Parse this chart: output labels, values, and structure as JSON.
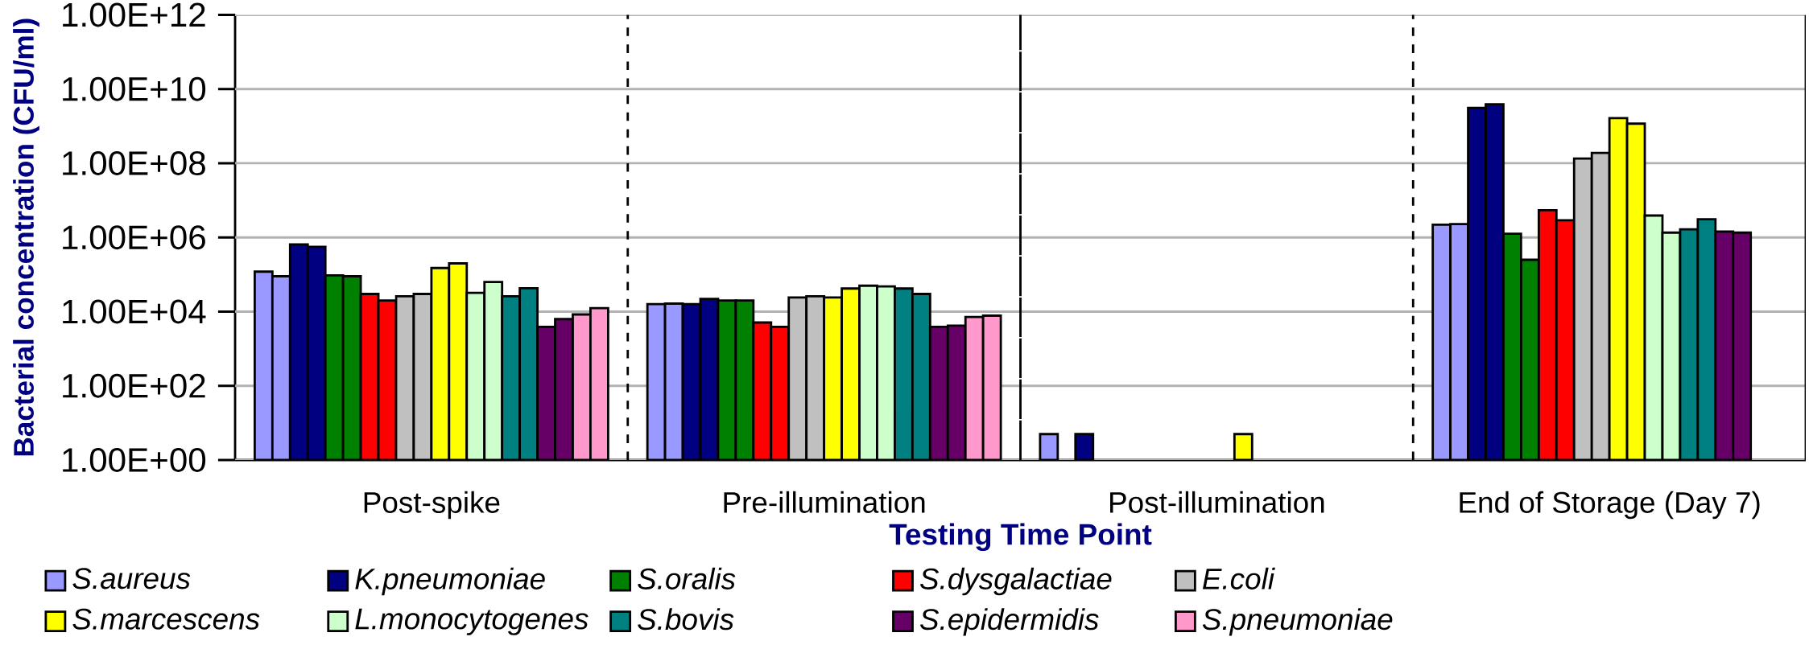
{
  "chart_data": {
    "type": "bar",
    "xlabel": "Testing Time Point",
    "ylabel": "Bacterial concentration (CFU/ml)",
    "categories": [
      "Post-spike",
      "Pre-illumination",
      "Post-illumination",
      "End of Storage (Day 7)"
    ],
    "log": true,
    "grid": "y",
    "legend": "bottom",
    "ylim": [
      1,
      1000000000000.0
    ],
    "yticks": [
      {
        "value": 1,
        "label": "1.00E+00"
      },
      {
        "value": 100,
        "label": "1.00E+02"
      },
      {
        "value": 10000,
        "label": "1.00E+04"
      },
      {
        "value": 1000000,
        "label": "1.00E+06"
      },
      {
        "value": 100000000,
        "label": "1.00E+08"
      },
      {
        "value": 10000000000,
        "label": "1.00E+10"
      },
      {
        "value": 1000000000000,
        "label": "1.00E+12"
      }
    ],
    "series": [
      {
        "name": "S.aureus",
        "color": "#9999ff",
        "values": [
          120000,
          16000,
          5,
          2200000
        ]
      },
      {
        "color": "#9999ff",
        "values": [
          90000,
          16500,
          null,
          2300000
        ]
      },
      {
        "name": "K.pneumoniae",
        "color": "#000080",
        "values": [
          650000,
          16000,
          5,
          3100000000
        ]
      },
      {
        "color": "#000080",
        "values": [
          560000,
          22000,
          null,
          3900000000
        ]
      },
      {
        "name": "S.oralis",
        "color": "#008000",
        "values": [
          95000,
          20000,
          null,
          1260000
        ]
      },
      {
        "color": "#008000",
        "values": [
          90000,
          20000,
          null,
          250000
        ]
      },
      {
        "name": "S.dysgalactiae",
        "color": "#ff0000",
        "values": [
          30000,
          5100,
          null,
          5400000
        ]
      },
      {
        "color": "#ff0000",
        "values": [
          20000,
          3900,
          null,
          2900000
        ]
      },
      {
        "name": "E.coli",
        "color": "#c0c0c0",
        "values": [
          26000,
          24000,
          null,
          134000000
        ]
      },
      {
        "color": "#c0c0c0",
        "values": [
          30000,
          26000,
          null,
          190000000
        ]
      },
      {
        "name": "S.marcescens",
        "color": "#ffff00",
        "values": [
          150000,
          24000,
          null,
          1650000000
        ]
      },
      {
        "color": "#ffff00",
        "values": [
          200000,
          42000,
          5,
          1170000000
        ]
      },
      {
        "name": "L.monocytogenes",
        "color": "#ccffcc",
        "values": [
          32000,
          50000,
          null,
          3900000
        ]
      },
      {
        "color": "#ccffcc",
        "values": [
          63000,
          48000,
          null,
          1350000
        ]
      },
      {
        "name": "S.bovis",
        "color": "#008080",
        "values": [
          26000,
          42000,
          null,
          1660000
        ]
      },
      {
        "color": "#008080",
        "values": [
          43000,
          30000,
          null,
          3100000
        ]
      },
      {
        "name": "S.epidermidis",
        "color": "#660066",
        "values": [
          3900,
          3900,
          null,
          1450000
        ]
      },
      {
        "color": "#660066",
        "values": [
          6300,
          4200,
          null,
          1350000
        ]
      },
      {
        "name": "S.pneumoniae",
        "color": "#ff99cc",
        "values": [
          8400,
          7200,
          null,
          null
        ]
      },
      {
        "color": "#ff99cc",
        "values": [
          12500,
          7800,
          null,
          null
        ]
      }
    ]
  }
}
